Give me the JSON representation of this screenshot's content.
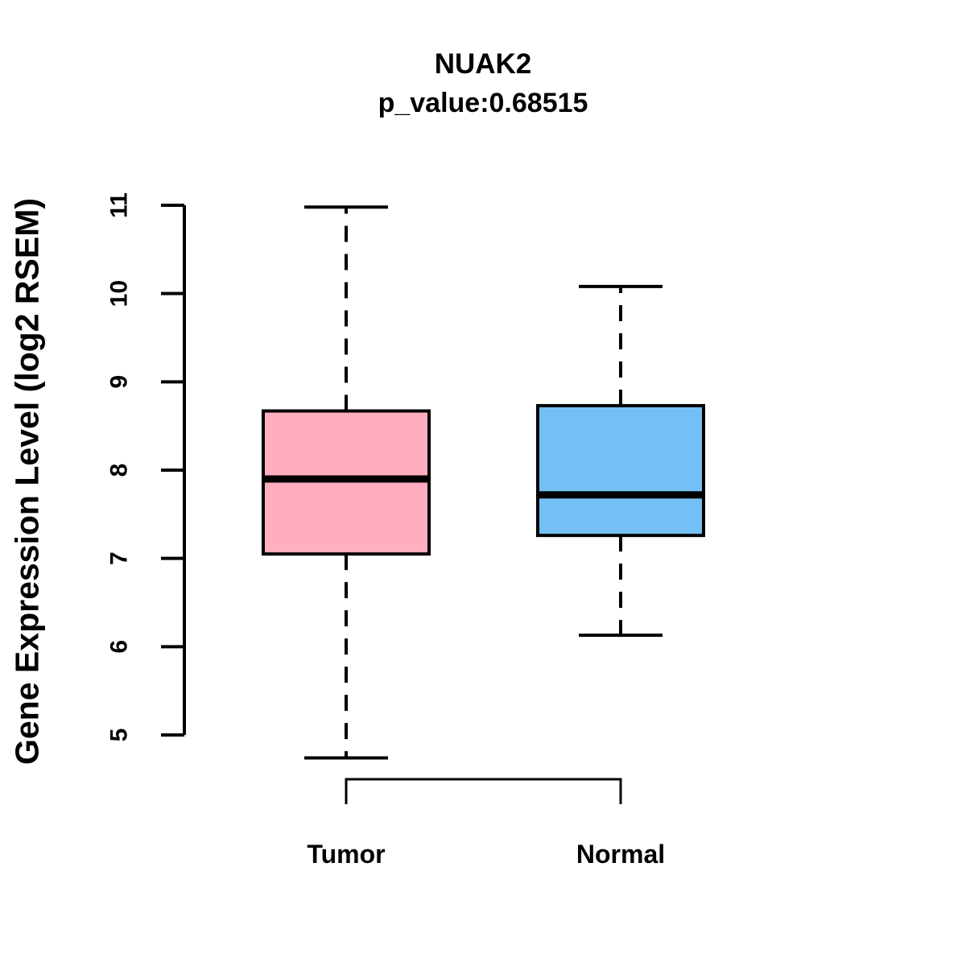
{
  "chart_data": {
    "type": "boxplot",
    "title": "NUAK2",
    "subtitle": "p_value:0.68515",
    "ylabel": "Gene Expression Level (log2 RSEM)",
    "ylim": [
      5,
      11
    ],
    "yticks": [
      5,
      6,
      7,
      8,
      9,
      10,
      11
    ],
    "categories": [
      "Tumor",
      "Normal"
    ],
    "series": [
      {
        "name": "Tumor",
        "color": "#FFAEC0",
        "whisker_low": 4.74,
        "q1": 7.05,
        "median": 7.9,
        "q3": 8.67,
        "whisker_high": 10.98
      },
      {
        "name": "Normal",
        "color": "#74BFF4",
        "whisker_low": 6.13,
        "q1": 7.26,
        "median": 7.72,
        "q3": 8.73,
        "whisker_high": 10.08
      }
    ],
    "comparison_bracket": true,
    "grid": false,
    "legend": "none",
    "stroke_color": "#000000"
  }
}
